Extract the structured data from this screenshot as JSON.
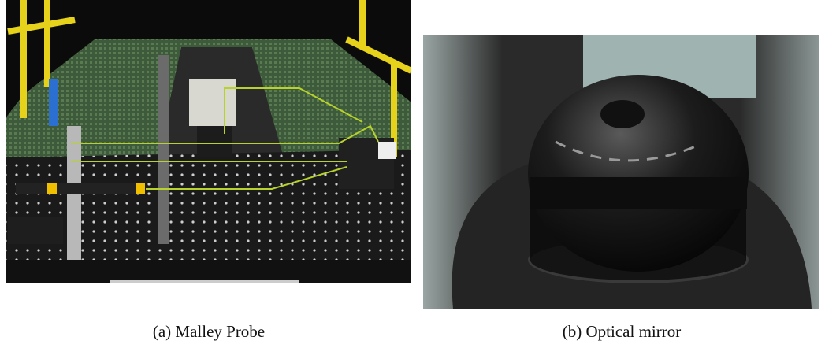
{
  "figures": [
    {
      "caption": "(a) Malley Probe"
    },
    {
      "caption": "(b) Optical mirror"
    }
  ]
}
